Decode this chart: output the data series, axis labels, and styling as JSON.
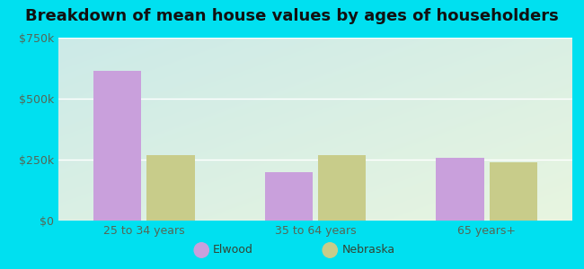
{
  "title": "Breakdown of mean house values by ages of householders",
  "categories": [
    "25 to 34 years",
    "35 to 64 years",
    "65 years+"
  ],
  "elwood_values": [
    615000,
    200000,
    258000
  ],
  "nebraska_values": [
    268000,
    268000,
    238000
  ],
  "elwood_color": "#c9a0dc",
  "nebraska_color": "#c8cc8a",
  "ylim": [
    0,
    750000
  ],
  "yticks": [
    0,
    250000,
    500000,
    750000
  ],
  "ytick_labels": [
    "$0",
    "$250k",
    "$500k",
    "$750k"
  ],
  "legend_elwood": "Elwood",
  "legend_nebraska": "Nebraska",
  "bg_outer": "#00e0f0",
  "bg_inner_tl": "#cceae8",
  "bg_inner_br": "#e8f5e0",
  "title_fontsize": 13,
  "axis_label_fontsize": 9,
  "legend_fontsize": 9,
  "bar_width": 0.28
}
